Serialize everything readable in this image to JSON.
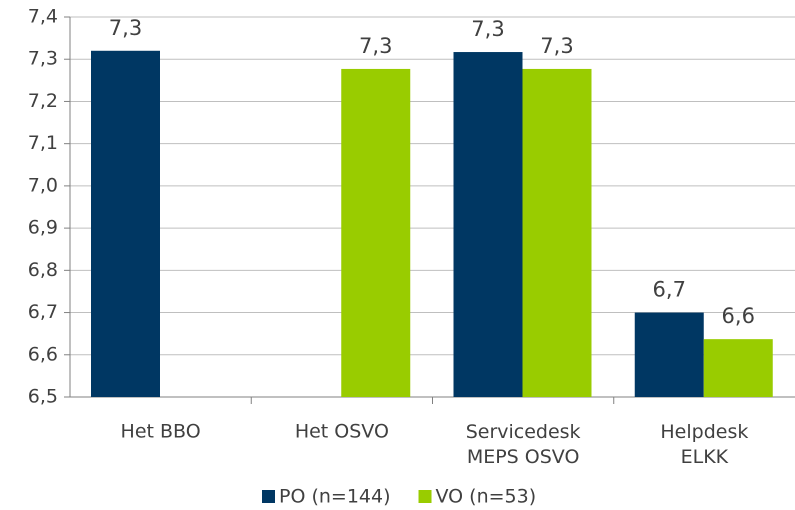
{
  "chart_data": {
    "type": "bar",
    "categories": [
      "Het BBO",
      "Het OSVO",
      "Servicedesk\nMEPS OSVO",
      "Helpdesk\nELKK"
    ],
    "series": [
      {
        "name": "PO (n=144)",
        "color": "#003763",
        "values": [
          7.32,
          null,
          7.317,
          6.7
        ],
        "value_labels": [
          "7,3",
          null,
          "7,3",
          "6,7"
        ]
      },
      {
        "name": "VO (n=53)",
        "color": "#99cc00",
        "values": [
          null,
          7.277,
          7.277,
          6.637
        ],
        "value_labels": [
          null,
          "7,3",
          "7,3",
          "6,6"
        ]
      }
    ],
    "ylim": [
      6.5,
      7.4
    ],
    "yticks": [
      {
        "value": 6.5,
        "label": "6,5"
      },
      {
        "value": 6.6,
        "label": "6,6"
      },
      {
        "value": 6.7,
        "label": "6,7"
      },
      {
        "value": 6.8,
        "label": "6,8"
      },
      {
        "value": 6.9,
        "label": "6,9"
      },
      {
        "value": 7.0,
        "label": "7,0"
      },
      {
        "value": 7.1,
        "label": "7,1"
      },
      {
        "value": 7.2,
        "label": "7,2"
      },
      {
        "value": 7.3,
        "label": "7,3"
      },
      {
        "value": 7.4,
        "label": "7,4"
      }
    ],
    "grid": true,
    "legend": "bottom"
  }
}
